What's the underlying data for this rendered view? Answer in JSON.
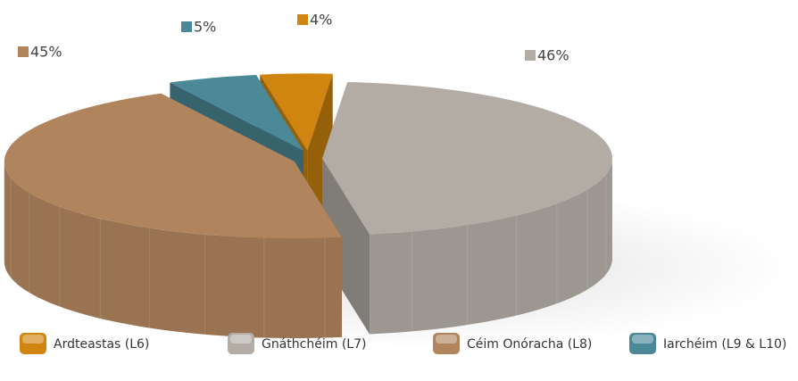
{
  "chart_data": {
    "type": "pie",
    "categories": [
      "Ardteastas (L6)",
      "Gnáthchéim (L7)",
      "Céim Onóracha (L8)",
      "Iarchéim (L9 & L10)"
    ],
    "values": [
      4,
      46,
      45,
      5
    ],
    "value_labels": [
      "4%",
      "46%",
      "45%",
      "5%"
    ],
    "colors": [
      "#cf850f",
      "#b2aca5",
      "#b0855e",
      "#4b8998"
    ],
    "legend": "bottom"
  }
}
